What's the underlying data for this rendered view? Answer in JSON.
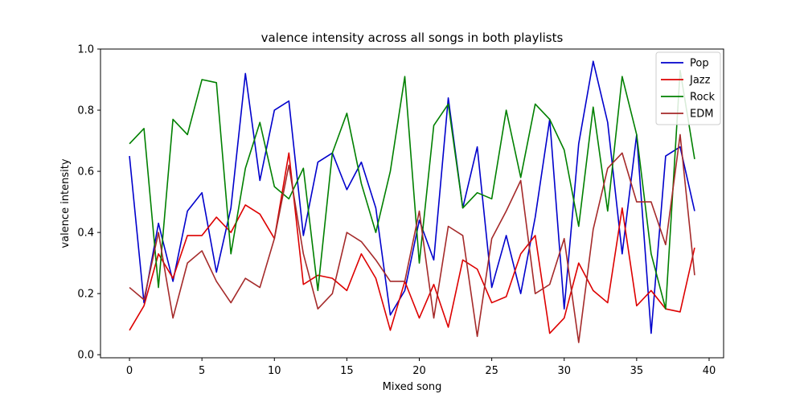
{
  "chart_data": {
    "type": "line",
    "title": "valence intensity across all songs in both playlists",
    "xlabel": "Mixed song",
    "ylabel": "valence intensity",
    "xlim": [
      -2,
      41
    ],
    "ylim": [
      -0.01,
      1.0
    ],
    "xticks": [
      0,
      5,
      10,
      15,
      20,
      25,
      30,
      35,
      40
    ],
    "yticks": [
      0.0,
      0.2,
      0.4,
      0.6,
      0.8,
      1.0
    ],
    "xtick_labels": [
      "0",
      "5",
      "10",
      "15",
      "20",
      "25",
      "30",
      "35",
      "40"
    ],
    "ytick_labels": [
      "0.0",
      "0.2",
      "0.4",
      "0.6",
      "0.8",
      "1.0"
    ],
    "legend": "top-right",
    "grid": false,
    "x": [
      0,
      1,
      2,
      3,
      4,
      5,
      6,
      7,
      8,
      9,
      10,
      11,
      12,
      13,
      14,
      15,
      16,
      17,
      18,
      19,
      20,
      21,
      22,
      23,
      24,
      25,
      26,
      27,
      28,
      29,
      30,
      31,
      32,
      33,
      34,
      35,
      36,
      37,
      38,
      39
    ],
    "series": [
      {
        "name": "Pop",
        "color": "#0000cc",
        "values": [
          0.65,
          0.17,
          0.43,
          0.24,
          0.47,
          0.53,
          0.27,
          0.48,
          0.92,
          0.57,
          0.8,
          0.83,
          0.39,
          0.63,
          0.66,
          0.54,
          0.63,
          0.48,
          0.13,
          0.21,
          0.44,
          0.31,
          0.84,
          0.48,
          0.68,
          0.22,
          0.39,
          0.2,
          0.45,
          0.77,
          0.15,
          0.69,
          0.96,
          0.76,
          0.33,
          0.72,
          0.07,
          0.65,
          0.68,
          0.47
        ]
      },
      {
        "name": "Jazz",
        "color": "#dd0000",
        "values": [
          0.08,
          0.16,
          0.33,
          0.25,
          0.39,
          0.39,
          0.45,
          0.4,
          0.49,
          0.46,
          0.38,
          0.66,
          0.23,
          0.26,
          0.25,
          0.21,
          0.33,
          0.25,
          0.08,
          0.24,
          0.12,
          0.23,
          0.09,
          0.31,
          0.28,
          0.17,
          0.19,
          0.33,
          0.39,
          0.07,
          0.12,
          0.3,
          0.21,
          0.17,
          0.48,
          0.16,
          0.21,
          0.15,
          0.14,
          0.35
        ]
      },
      {
        "name": "Rock",
        "color": "#008000",
        "values": [
          0.69,
          0.74,
          0.22,
          0.77,
          0.72,
          0.9,
          0.89,
          0.33,
          0.61,
          0.76,
          0.55,
          0.51,
          0.61,
          0.21,
          0.66,
          0.79,
          0.56,
          0.4,
          0.6,
          0.91,
          0.3,
          0.75,
          0.82,
          0.48,
          0.53,
          0.51,
          0.8,
          0.58,
          0.82,
          0.77,
          0.67,
          0.42,
          0.81,
          0.47,
          0.91,
          0.72,
          0.33,
          0.15,
          0.93,
          0.64
        ]
      },
      {
        "name": "EDM",
        "color": "#a52a2a",
        "values": [
          0.22,
          0.18,
          0.4,
          0.12,
          0.3,
          0.34,
          0.24,
          0.17,
          0.25,
          0.22,
          0.38,
          0.62,
          0.33,
          0.15,
          0.2,
          0.4,
          0.37,
          0.31,
          0.24,
          0.24,
          0.47,
          0.12,
          0.42,
          0.39,
          0.06,
          0.38,
          0.47,
          0.57,
          0.2,
          0.23,
          0.38,
          0.04,
          0.41,
          0.61,
          0.66,
          0.5,
          0.5,
          0.36,
          0.72,
          0.26
        ]
      }
    ]
  }
}
